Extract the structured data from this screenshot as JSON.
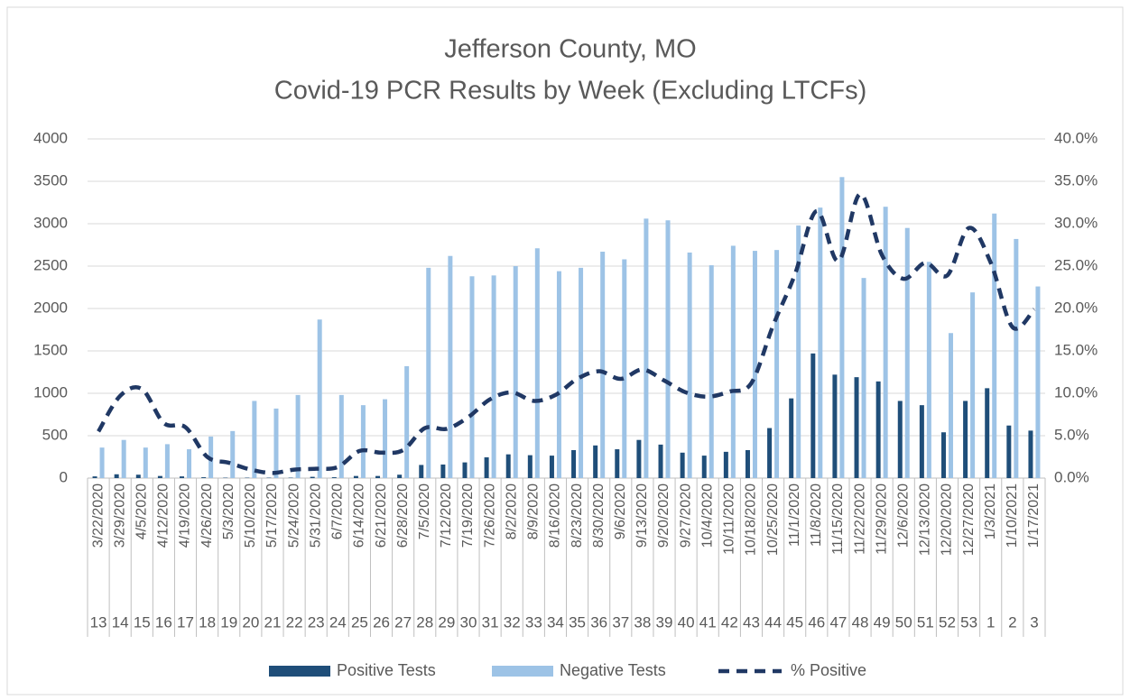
{
  "chart_data": {
    "type": "bar_line",
    "title": [
      "Jefferson County, MO",
      "Covid-19 PCR Results by Week (Excluding LTCFs)"
    ],
    "categories": [
      "3/22/2020",
      "3/29/2020",
      "4/5/2020",
      "4/12/2020",
      "4/19/2020",
      "4/26/2020",
      "5/3/2020",
      "5/10/2020",
      "5/17/2020",
      "5/24/2020",
      "5/31/2020",
      "6/7/2020",
      "6/14/2020",
      "6/21/2020",
      "6/28/2020",
      "7/5/2020",
      "7/12/2020",
      "7/19/2020",
      "7/26/2020",
      "8/2/2020",
      "8/9/2020",
      "8/16/2020",
      "8/23/2020",
      "8/30/2020",
      "9/6/2020",
      "9/13/2020",
      "9/20/2020",
      "9/27/2020",
      "10/4/2020",
      "10/11/2020",
      "10/18/2020",
      "10/25/2020",
      "11/1/2020",
      "11/8/2020",
      "11/15/2020",
      "11/22/2020",
      "11/29/2020",
      "12/6/2020",
      "12/13/2020",
      "12/20/2020",
      "12/27/2020",
      "1/3/2021",
      "1/10/2021",
      "1/17/2021"
    ],
    "weeks": [
      13,
      14,
      15,
      16,
      17,
      18,
      19,
      20,
      21,
      22,
      23,
      24,
      25,
      26,
      27,
      28,
      29,
      30,
      31,
      32,
      33,
      34,
      35,
      36,
      37,
      38,
      39,
      40,
      41,
      42,
      43,
      44,
      45,
      46,
      47,
      48,
      49,
      50,
      51,
      52,
      53,
      1,
      2,
      3
    ],
    "series": [
      {
        "name": "Positive Tests",
        "color": "#1f4e79",
        "kind": "bar",
        "values": [
          20,
          45,
          40,
          25,
          20,
          10,
          5,
          5,
          5,
          5,
          15,
          10,
          25,
          25,
          40,
          155,
          160,
          185,
          245,
          280,
          270,
          265,
          330,
          385,
          340,
          450,
          395,
          300,
          265,
          310,
          330,
          590,
          940,
          1470,
          1220,
          1190,
          1140,
          910,
          860,
          540,
          910,
          1060,
          620,
          560
        ]
      },
      {
        "name": "Negative Tests",
        "color": "#9dc3e6",
        "kind": "bar",
        "values": [
          360,
          450,
          360,
          400,
          340,
          490,
          555,
          910,
          820,
          980,
          1870,
          980,
          860,
          930,
          1320,
          2480,
          2620,
          2380,
          2390,
          2500,
          2710,
          2440,
          2480,
          2670,
          2580,
          3060,
          3040,
          2660,
          2510,
          2740,
          2680,
          2690,
          2980,
          3190,
          3550,
          2360,
          3200,
          2950,
          2550,
          1710,
          2190,
          3120,
          2820,
          2260
        ]
      },
      {
        "name": "% Positive",
        "color": "#203864",
        "kind": "line",
        "axis": "y2",
        "dashed": true,
        "values": [
          5.5,
          9.7,
          10.5,
          6.5,
          6.0,
          2.5,
          1.8,
          1.0,
          0.6,
          1.0,
          1.1,
          1.3,
          3.2,
          3.0,
          3.3,
          5.9,
          5.8,
          7.2,
          9.3,
          10.1,
          9.1,
          9.8,
          11.7,
          12.6,
          11.7,
          12.8,
          11.5,
          10.1,
          9.6,
          10.2,
          11.2,
          18.0,
          24.0,
          31.5,
          25.6,
          33.5,
          26.3,
          23.5,
          25.4,
          23.9,
          29.5,
          25.4,
          17.8,
          19.9
        ]
      }
    ],
    "ylim": [
      0,
      4000
    ],
    "yticks": [
      0,
      500,
      1000,
      1500,
      2000,
      2500,
      3000,
      3500,
      4000
    ],
    "y2lim": [
      0,
      40
    ],
    "y2ticks": [
      {
        "value": 0,
        "label": "0.0%"
      },
      {
        "value": 5,
        "label": "5.0%"
      },
      {
        "value": 10,
        "label": "10.0%"
      },
      {
        "value": 15,
        "label": "15.0%"
      },
      {
        "value": 20,
        "label": "20.0%"
      },
      {
        "value": 25,
        "label": "25.0%"
      },
      {
        "value": 30,
        "label": "30.0%"
      },
      {
        "value": 35,
        "label": "35.0%"
      },
      {
        "value": 40,
        "label": "40.0%"
      }
    ],
    "grid": true,
    "legend": "bottom"
  }
}
